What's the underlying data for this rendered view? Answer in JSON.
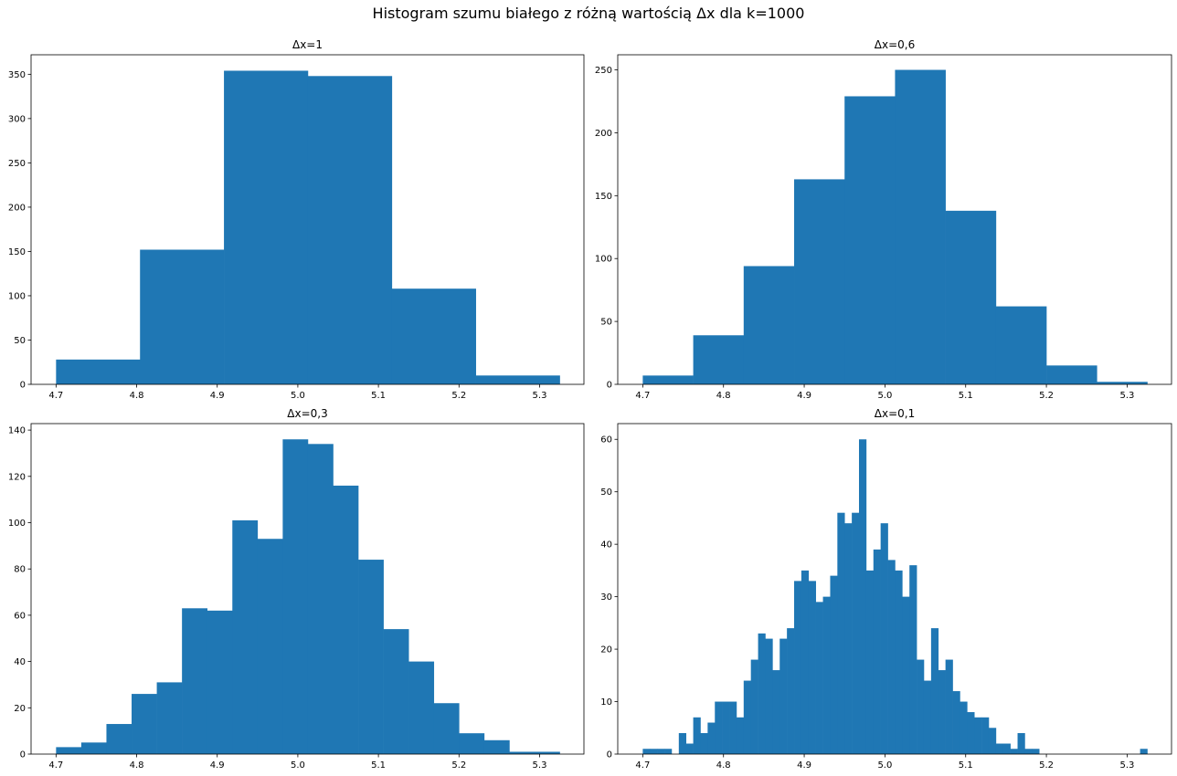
{
  "figure": {
    "suptitle": "Histogram szumu białego z różną wartością Δx dla k=1000",
    "bar_color": "#1f77b4",
    "axes_color": "#000000"
  },
  "chart_data": [
    {
      "type": "bar",
      "title": "Δx=1",
      "xlabel": "",
      "ylabel": "",
      "xlim": [
        4.669,
        5.355
      ],
      "ylim": [
        0,
        372
      ],
      "xticks": [
        4.7,
        4.8,
        4.9,
        5.0,
        5.1,
        5.2,
        5.3
      ],
      "xtick_labels": [
        "4.7",
        "4.8",
        "4.9",
        "5.0",
        "5.1",
        "5.2",
        "5.3"
      ],
      "yticks": [
        0,
        50,
        100,
        150,
        200,
        250,
        300,
        350
      ],
      "ytick_labels": [
        "0",
        "50",
        "100",
        "150",
        "200",
        "250",
        "300",
        "350"
      ],
      "x_start": 4.7,
      "x_end": 5.325,
      "values": [
        28,
        152,
        354,
        348,
        108,
        10
      ],
      "grid": false
    },
    {
      "type": "bar",
      "title": "Δx=0,6",
      "xlabel": "",
      "ylabel": "",
      "xlim": [
        4.669,
        5.355
      ],
      "ylim": [
        0,
        262
      ],
      "xticks": [
        4.7,
        4.8,
        4.9,
        5.0,
        5.1,
        5.2,
        5.3
      ],
      "xtick_labels": [
        "4.7",
        "4.8",
        "4.9",
        "5.0",
        "5.1",
        "5.2",
        "5.3"
      ],
      "yticks": [
        0,
        50,
        100,
        150,
        200,
        250
      ],
      "ytick_labels": [
        "0",
        "50",
        "100",
        "150",
        "200",
        "250"
      ],
      "x_start": 4.7,
      "x_end": 5.325,
      "values": [
        7,
        39,
        94,
        163,
        229,
        250,
        138,
        62,
        15,
        2
      ],
      "grid": false
    },
    {
      "type": "bar",
      "title": "Δx=0,3",
      "xlabel": "",
      "ylabel": "",
      "xlim": [
        4.669,
        5.355
      ],
      "ylim": [
        0,
        142.8
      ],
      "xticks": [
        4.7,
        4.8,
        4.9,
        5.0,
        5.1,
        5.2,
        5.3
      ],
      "xtick_labels": [
        "4.7",
        "4.8",
        "4.9",
        "5.0",
        "5.1",
        "5.2",
        "5.3"
      ],
      "yticks": [
        0,
        20,
        40,
        60,
        80,
        100,
        120,
        140
      ],
      "ytick_labels": [
        "0",
        "20",
        "40",
        "60",
        "80",
        "100",
        "120",
        "140"
      ],
      "x_start": 4.7,
      "x_end": 5.325,
      "values": [
        3,
        5,
        13,
        26,
        31,
        63,
        62,
        101,
        93,
        136,
        134,
        116,
        84,
        54,
        40,
        22,
        9,
        6,
        1,
        1
      ],
      "grid": false
    },
    {
      "type": "bar",
      "title": "Δx=0,1",
      "xlabel": "",
      "ylabel": "",
      "xlim": [
        4.669,
        5.355
      ],
      "ylim": [
        0,
        63
      ],
      "xticks": [
        4.7,
        4.8,
        4.9,
        5.0,
        5.1,
        5.2,
        5.3
      ],
      "xtick_labels": [
        "4.7",
        "4.8",
        "4.9",
        "5.0",
        "5.1",
        "5.2",
        "5.3"
      ],
      "yticks": [
        0,
        10,
        20,
        30,
        40,
        50,
        60
      ],
      "ytick_labels": [
        "0",
        "10",
        "20",
        "30",
        "40",
        "50",
        "60"
      ],
      "x_start": 4.7,
      "x_end": 5.325,
      "values": [
        1,
        1,
        1,
        1,
        0,
        4,
        2,
        7,
        4,
        6,
        10,
        10,
        10,
        7,
        14,
        18,
        23,
        22,
        16,
        22,
        24,
        33,
        35,
        33,
        29,
        30,
        34,
        46,
        44,
        46,
        60,
        35,
        39,
        44,
        37,
        35,
        30,
        36,
        18,
        14,
        24,
        16,
        18,
        12,
        10,
        8,
        7,
        7,
        5,
        2,
        2,
        1,
        4,
        1,
        1,
        0,
        0,
        0,
        0,
        0,
        0,
        0,
        0,
        0,
        0,
        0,
        0,
        0,
        0,
        1
      ],
      "grid": false
    }
  ]
}
